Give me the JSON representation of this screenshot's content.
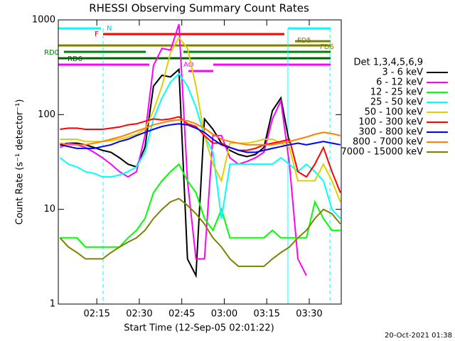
{
  "chart_data": {
    "type": "line",
    "title": "RHESSI Observing Summary Count Rates",
    "x_label": "Start Time (12-Sep-05 02:01:22)",
    "y_label": "Count Rate (s⁻¹ detector⁻¹)",
    "legend_title": "Det 1,3,4,5,6,9",
    "footer": "20-Oct-2021 01:38",
    "annotations": [
      "N",
      "F",
      "FD5",
      "FD6",
      "RD0",
      "RD6",
      "AO"
    ],
    "log_y": true,
    "legend": "right",
    "xlim": [
      1.4,
      101.3
    ],
    "ylim": [
      1,
      1000
    ],
    "xticks": [
      {
        "value": 15,
        "label": "02:15"
      },
      {
        "value": 30,
        "label": "02:30"
      },
      {
        "value": 45,
        "label": "02:45"
      },
      {
        "value": 60,
        "label": "03:00"
      },
      {
        "value": 75,
        "label": "03:15"
      },
      {
        "value": 90,
        "label": "03:30"
      }
    ],
    "yticks": [
      1,
      10,
      100,
      1000
    ],
    "x": [
      2,
      5,
      8,
      11,
      14,
      17,
      20,
      23,
      26,
      29,
      32,
      35,
      38,
      41,
      44,
      47,
      50,
      53,
      56,
      59,
      62,
      65,
      68,
      71,
      74,
      77,
      80,
      83,
      86,
      89,
      92,
      95,
      98,
      101
    ],
    "series": [
      {
        "name": "3 - 6 keV",
        "color": "#000000",
        "values": [
          48,
          50,
          50,
          48,
          45,
          42,
          40,
          35,
          30,
          28,
          45,
          200,
          260,
          250,
          300,
          3,
          2,
          90,
          70,
          50,
          42,
          38,
          36,
          38,
          45,
          110,
          150,
          50,
          null,
          null,
          null,
          null,
          null,
          null
        ]
      },
      {
        "name": "6 - 12 keV",
        "color": "#ff00ff",
        "values": [
          45,
          50,
          48,
          45,
          40,
          35,
          30,
          25,
          22,
          25,
          60,
          330,
          500,
          480,
          900,
          20,
          3,
          3,
          60,
          60,
          35,
          30,
          32,
          35,
          40,
          90,
          140,
          30,
          3,
          2,
          null,
          null,
          null,
          null
        ]
      },
      {
        "name": "12 - 25 keV",
        "color": "#00ff00",
        "values": [
          5,
          5,
          5,
          4,
          4,
          4,
          4,
          4,
          5,
          6,
          8,
          15,
          20,
          25,
          30,
          20,
          15,
          8,
          6,
          10,
          5,
          5,
          5,
          5,
          5,
          6,
          5,
          5,
          5,
          5,
          12,
          8,
          6,
          6
        ]
      },
      {
        "name": "25 - 50 keV",
        "color": "#00ffff",
        "values": [
          35,
          30,
          28,
          25,
          24,
          22,
          22,
          23,
          25,
          28,
          40,
          90,
          150,
          220,
          270,
          200,
          120,
          60,
          40,
          8,
          30,
          30,
          30,
          30,
          30,
          30,
          35,
          30,
          25,
          30,
          25,
          20,
          10,
          8
        ]
      },
      {
        "name": "50 - 100 keV",
        "color": "#e0d000",
        "values": [
          55,
          55,
          55,
          52,
          52,
          52,
          53,
          55,
          58,
          62,
          70,
          110,
          200,
          450,
          650,
          500,
          200,
          60,
          30,
          20,
          50,
          50,
          50,
          52,
          55,
          55,
          50,
          45,
          20,
          20,
          20,
          30,
          20,
          12
        ]
      },
      {
        "name": "100 - 300 keV",
        "color": "#ff0000",
        "values": [
          70,
          72,
          72,
          70,
          70,
          70,
          72,
          74,
          78,
          80,
          85,
          90,
          88,
          90,
          95,
          80,
          75,
          60,
          50,
          50,
          45,
          42,
          42,
          44,
          48,
          50,
          52,
          55,
          25,
          22,
          30,
          45,
          25,
          15
        ]
      },
      {
        "name": "300 - 800 keV",
        "color": "#0000ff",
        "values": [
          48,
          46,
          44,
          44,
          44,
          46,
          48,
          52,
          55,
          60,
          65,
          70,
          75,
          78,
          80,
          78,
          72,
          65,
          55,
          48,
          45,
          42,
          40,
          40,
          42,
          44,
          46,
          48,
          50,
          48,
          50,
          52,
          50,
          48
        ]
      },
      {
        "name": "800 - 7000 keV",
        "color": "#ff8000",
        "values": [
          50,
          48,
          48,
          48,
          50,
          52,
          55,
          58,
          62,
          67,
          72,
          78,
          82,
          86,
          88,
          86,
          80,
          72,
          62,
          55,
          52,
          50,
          48,
          48,
          48,
          48,
          50,
          52,
          55,
          58,
          62,
          65,
          63,
          60
        ]
      },
      {
        "name": "7000 - 15000 keV",
        "color": "#808000",
        "values": [
          5,
          4,
          3.5,
          3,
          3,
          3,
          3.5,
          4,
          4.5,
          5,
          6,
          8,
          10,
          12,
          13,
          11,
          9,
          7,
          5,
          4,
          3,
          2.5,
          2.5,
          2.5,
          2.5,
          3,
          3.5,
          4,
          5,
          6,
          8,
          10,
          9,
          7
        ]
      }
    ]
  }
}
